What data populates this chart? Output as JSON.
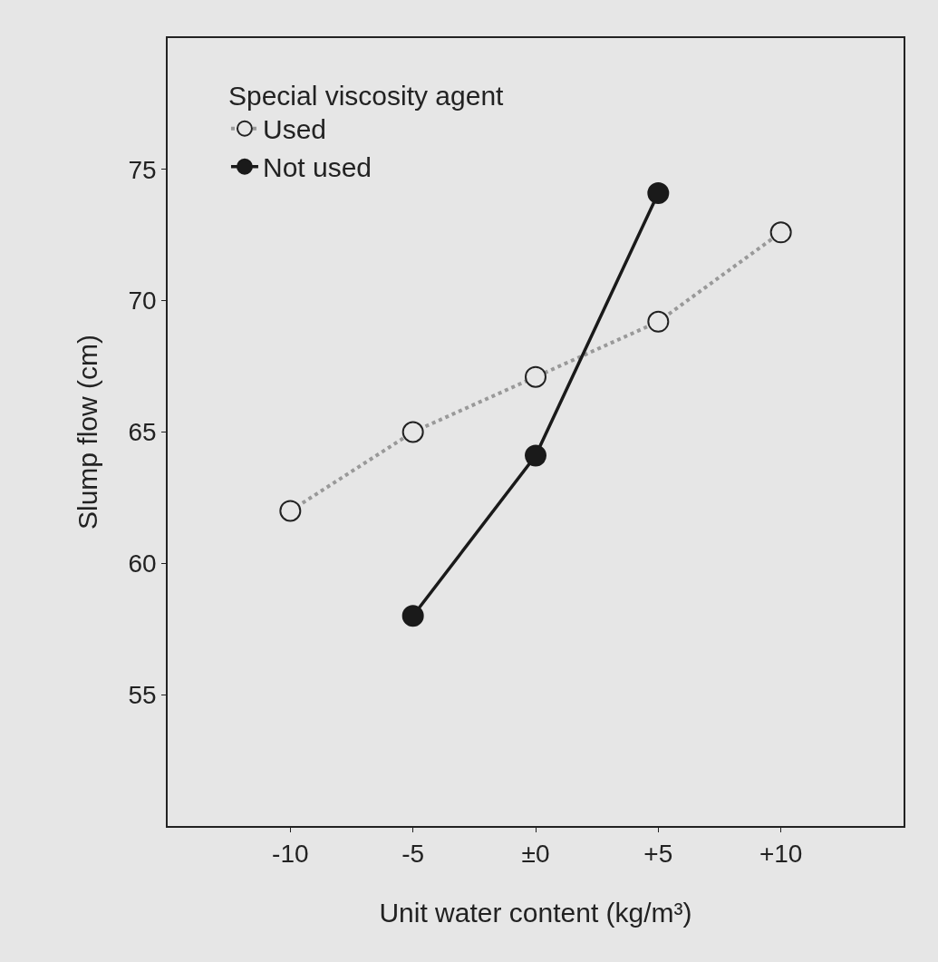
{
  "chart_data": {
    "type": "line",
    "xlabel": "Unit water content (kg/m³)",
    "ylabel": "Slump flow (cm)",
    "legend_title": "Special viscosity agent",
    "legend": "top left",
    "marker": "circle",
    "grid": false,
    "xlim": [
      -15,
      15
    ],
    "ylim": [
      50,
      80
    ],
    "xticks": [
      {
        "value": -10,
        "label": "-10"
      },
      {
        "value": -5,
        "label": "-5"
      },
      {
        "value": 0,
        "label": "±0"
      },
      {
        "value": 5,
        "label": "+5"
      },
      {
        "value": 10,
        "label": "+10"
      }
    ],
    "yticks": [
      55,
      60,
      65,
      70,
      75
    ],
    "series": [
      {
        "name": "Used",
        "color": "#999999",
        "line_style": "dotted",
        "x": [
          -10,
          -5,
          0,
          5,
          10
        ],
        "values": [
          62,
          65,
          67.1,
          69.2,
          72.6
        ]
      },
      {
        "name": "Not used",
        "color": "#1a1a1a",
        "line_style": "solid",
        "x": [
          -5,
          0,
          5
        ],
        "values": [
          58,
          64.1,
          74.1
        ]
      }
    ]
  }
}
